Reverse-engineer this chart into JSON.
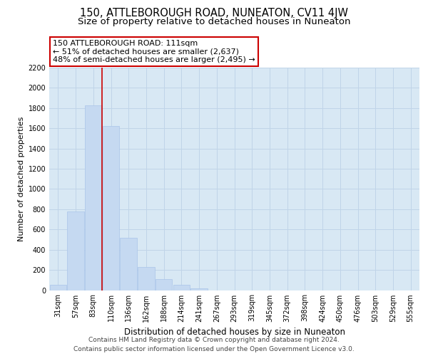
{
  "title": "150, ATTLEBOROUGH ROAD, NUNEATON, CV11 4JW",
  "subtitle": "Size of property relative to detached houses in Nuneaton",
  "xlabel": "Distribution of detached houses by size in Nuneaton",
  "ylabel": "Number of detached properties",
  "bar_labels": [
    "31sqm",
    "57sqm",
    "83sqm",
    "110sqm",
    "136sqm",
    "162sqm",
    "188sqm",
    "214sqm",
    "241sqm",
    "267sqm",
    "293sqm",
    "319sqm",
    "345sqm",
    "372sqm",
    "398sqm",
    "424sqm",
    "450sqm",
    "476sqm",
    "503sqm",
    "529sqm",
    "555sqm"
  ],
  "bar_values": [
    50,
    775,
    1830,
    1620,
    520,
    230,
    110,
    55,
    20,
    0,
    0,
    0,
    0,
    0,
    0,
    0,
    0,
    0,
    0,
    0,
    0
  ],
  "bar_color": "#c5d9f1",
  "bar_edge_color": "#aac4e8",
  "marker_line_color": "#cc0000",
  "annotation_line1": "150 ATTLEBOROUGH ROAD: 111sqm",
  "annotation_line2": "← 51% of detached houses are smaller (2,637)",
  "annotation_line3": "48% of semi-detached houses are larger (2,495) →",
  "annotation_box_color": "white",
  "annotation_box_edge": "#cc0000",
  "ylim": [
    0,
    2200
  ],
  "yticks": [
    0,
    200,
    400,
    600,
    800,
    1000,
    1200,
    1400,
    1600,
    1800,
    2000,
    2200
  ],
  "grid_color": "#c0d4e8",
  "background_color": "#d8e8f4",
  "footer_text": "Contains HM Land Registry data © Crown copyright and database right 2024.\nContains public sector information licensed under the Open Government Licence v3.0.",
  "title_fontsize": 10.5,
  "subtitle_fontsize": 9.5,
  "xlabel_fontsize": 8.5,
  "ylabel_fontsize": 8,
  "tick_fontsize": 7,
  "annotation_fontsize": 8,
  "footer_fontsize": 6.5
}
